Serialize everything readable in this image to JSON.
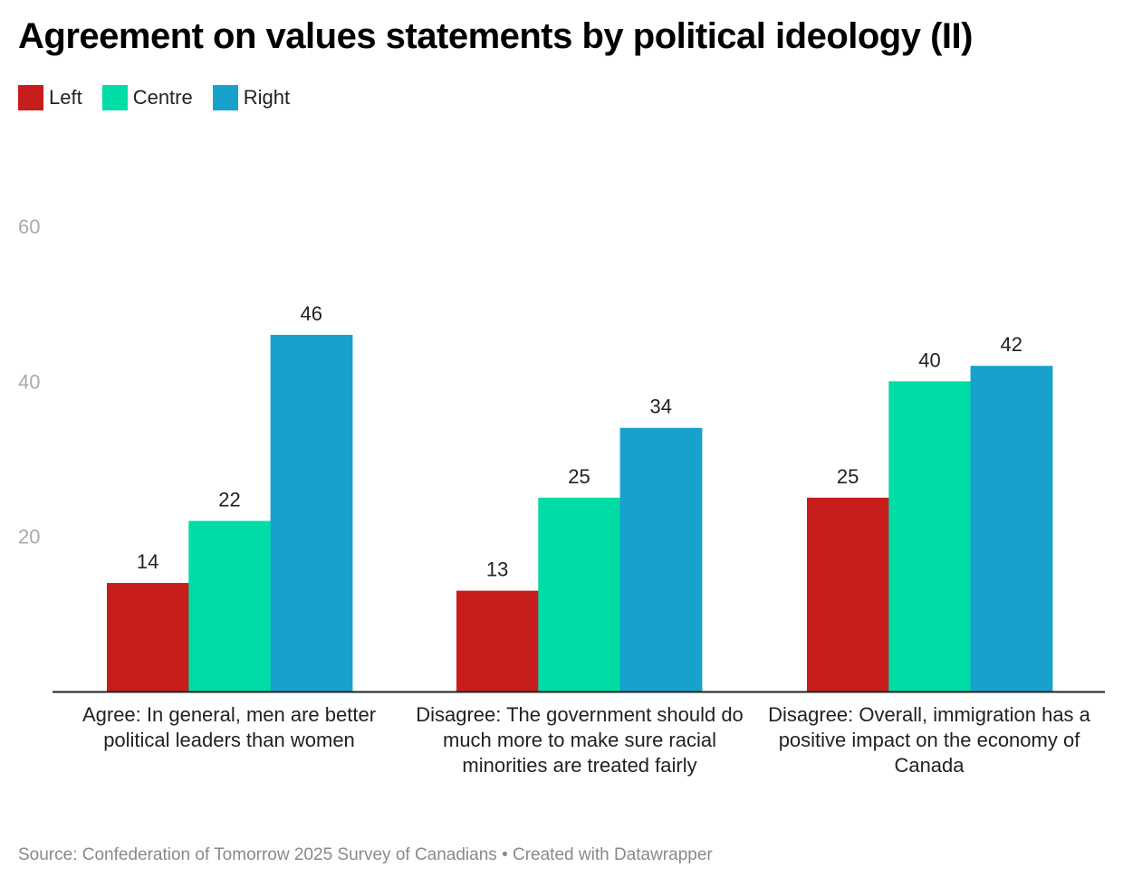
{
  "chart_data": {
    "type": "bar",
    "title": "Agreement on values statements by political ideology (II)",
    "categories": [
      "Agree: In general, men are better political leaders than women",
      "Disagree: The government should do much more to make sure racial minorities are treated fairly",
      "Disagree: Overall, immigration has a positive impact on the economy of Canada"
    ],
    "series": [
      {
        "name": "Left",
        "color": "#c71e1d",
        "values": [
          14,
          13,
          25
        ]
      },
      {
        "name": "Centre",
        "color": "#00dca6",
        "values": [
          22,
          25,
          40
        ]
      },
      {
        "name": "Right",
        "color": "#18a1cd",
        "values": [
          46,
          34,
          42
        ]
      }
    ],
    "yticks": [
      "20",
      "40",
      "60"
    ],
    "ylim": [
      0,
      60
    ],
    "xlabel": "",
    "ylabel": "",
    "grid": false,
    "legend_position": "top-left"
  },
  "footer": {
    "source": "Source: Confederation of Tomorrow 2025 Survey of Canadians • Created with Datawrapper"
  }
}
